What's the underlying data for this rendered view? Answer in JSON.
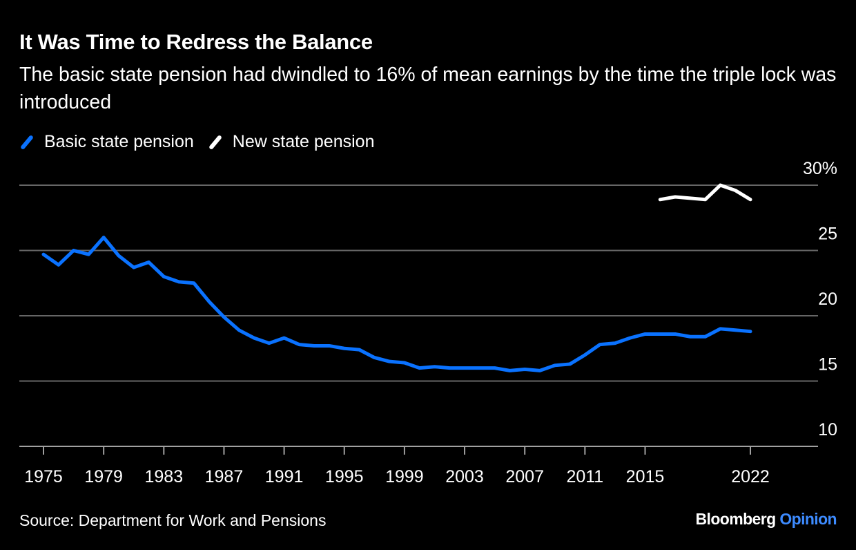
{
  "title": "It Was Time to Redress the Balance",
  "subtitle": "The basic state pension had dwindled to 16% of mean earnings by the time the triple lock was introduced",
  "source": "Source: Department for Work and Pensions",
  "logo": {
    "brand": "Bloomberg",
    "product": "Opinion",
    "product_color": "#3d8bff"
  },
  "chart_data": {
    "type": "line",
    "title": "It Was Time to Redress the Balance",
    "ylim": [
      10,
      30
    ],
    "yticks": [
      10,
      15,
      20,
      25,
      30
    ],
    "ytick_labels": [
      "10",
      "15",
      "20",
      "25",
      "30%"
    ],
    "xlim": [
      1975,
      2022
    ],
    "xticks": [
      1975,
      1979,
      1983,
      1987,
      1991,
      1995,
      1999,
      2003,
      2007,
      2011,
      2015,
      2022
    ],
    "grid": true,
    "legend": "top-left",
    "series": [
      {
        "name": "Basic state pension",
        "color": "#0a72ff",
        "x": [
          1975,
          1976,
          1977,
          1978,
          1979,
          1980,
          1981,
          1982,
          1983,
          1984,
          1985,
          1986,
          1987,
          1988,
          1989,
          1990,
          1991,
          1992,
          1993,
          1994,
          1995,
          1996,
          1997,
          1998,
          1999,
          2000,
          2001,
          2002,
          2003,
          2004,
          2005,
          2006,
          2007,
          2008,
          2009,
          2010,
          2011,
          2012,
          2013,
          2014,
          2015,
          2016,
          2017,
          2018,
          2019,
          2020,
          2021,
          2022
        ],
        "values": [
          24.7,
          23.9,
          25.0,
          24.7,
          26.0,
          24.6,
          23.7,
          24.1,
          23.0,
          22.6,
          22.5,
          21.1,
          19.9,
          18.9,
          18.3,
          17.9,
          18.3,
          17.8,
          17.7,
          17.7,
          17.5,
          17.4,
          16.8,
          16.5,
          16.4,
          16.0,
          16.1,
          16.0,
          16.0,
          16.0,
          16.0,
          15.8,
          15.9,
          15.8,
          16.2,
          16.3,
          17.0,
          17.8,
          17.9,
          18.3,
          18.6,
          18.6,
          18.6,
          18.4,
          18.4,
          19.0,
          18.9,
          18.8
        ]
      },
      {
        "name": "New state pension",
        "color": "#ffffff",
        "x": [
          2016,
          2017,
          2018,
          2019,
          2020,
          2021,
          2022
        ],
        "values": [
          28.9,
          29.1,
          29.0,
          28.9,
          30.0,
          29.6,
          28.9
        ]
      }
    ]
  }
}
